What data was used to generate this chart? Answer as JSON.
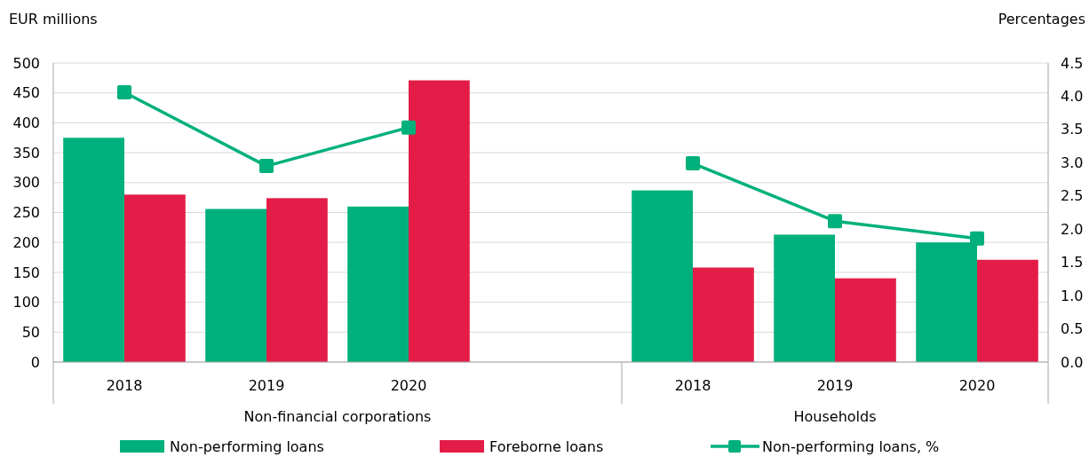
{
  "chart_data": {
    "type": "bar",
    "ylabel": "EUR millions",
    "y2label": "Percentages",
    "categories": [
      "2018",
      "2019",
      "2020",
      null,
      "2018",
      "2019",
      "2020"
    ],
    "annotations": [
      "Non-financial corporations",
      "Households"
    ],
    "series": [
      {
        "name": "Non-performing loans",
        "color": "#00b07c",
        "values": [
          375,
          256,
          260,
          null,
          287,
          213,
          200
        ]
      },
      {
        "name": "Foreborne loans",
        "color": "#e31d48",
        "values": [
          280,
          274,
          471,
          null,
          158,
          140,
          171
        ]
      },
      {
        "name": "Non-performing loans, %",
        "type": "line",
        "axis": "y2",
        "color": "#00b07c",
        "marker": "square",
        "values": [
          4.06,
          2.95,
          3.53,
          null,
          2.99,
          2.12,
          1.86
        ]
      }
    ],
    "ylim": [
      0,
      500
    ],
    "yticks": [
      0,
      50,
      100,
      150,
      200,
      250,
      300,
      350,
      400,
      450,
      500
    ],
    "y2lim": [
      0,
      4.5
    ],
    "y2ticks": [
      {
        "value": 0,
        "label": "0.0"
      },
      {
        "value": 0.5,
        "label": "0.5"
      },
      {
        "value": 1,
        "label": "1.0"
      },
      {
        "value": 1.5,
        "label": "1.5"
      },
      {
        "value": 2,
        "label": "2.0"
      },
      {
        "value": 2.5,
        "label": "2.5"
      },
      {
        "value": 3,
        "label": "3.0"
      },
      {
        "value": 3.5,
        "label": "3.5"
      },
      {
        "value": 4,
        "label": "4.0"
      },
      {
        "value": 4.5,
        "label": "4.5"
      }
    ],
    "grid": "y",
    "legend": "bottom"
  }
}
